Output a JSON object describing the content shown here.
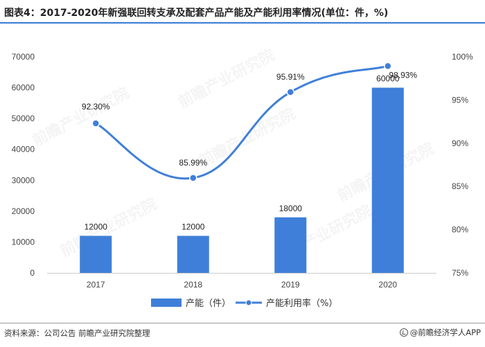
{
  "title": "图表4：2017-2020年新强联回转支承及配套产品产能及产能利用率情况(单位：件，%)",
  "source": "资料来源：公司公告 前瞻产业研究院整理",
  "brand": "@前瞻经济学人APP",
  "watermark": "前瞻产业研究院",
  "colors": {
    "bar": "#3f7fd9",
    "line": "#3f7fd9",
    "title_bar": "#3a7bd5"
  },
  "chart_data": {
    "type": "bar+line",
    "categories": [
      "2017",
      "2018",
      "2019",
      "2020"
    ],
    "series": [
      {
        "name": "产能（件）",
        "type": "bar",
        "axis": "left",
        "values": [
          12000,
          12000,
          18000,
          60000
        ],
        "labels": [
          "12000",
          "12000",
          "18000",
          "60000"
        ]
      },
      {
        "name": "产能利用率（%）",
        "type": "line",
        "axis": "right",
        "values": [
          92.3,
          85.99,
          95.91,
          98.93
        ],
        "labels": [
          "92.30%",
          "85.99%",
          "95.91%",
          "98.93%"
        ]
      }
    ],
    "y_left": {
      "min": 0,
      "max": 70000,
      "ticks": [
        "0",
        "10000",
        "20000",
        "30000",
        "40000",
        "50000",
        "60000",
        "70000"
      ]
    },
    "y_right": {
      "min": 75,
      "max": 100,
      "ticks": [
        "75%",
        "80%",
        "85%",
        "90%",
        "95%",
        "100%"
      ]
    },
    "legend": {
      "position": "bottom",
      "items": [
        "产能（件）",
        "产能利用率（%）"
      ]
    },
    "grid": false
  }
}
